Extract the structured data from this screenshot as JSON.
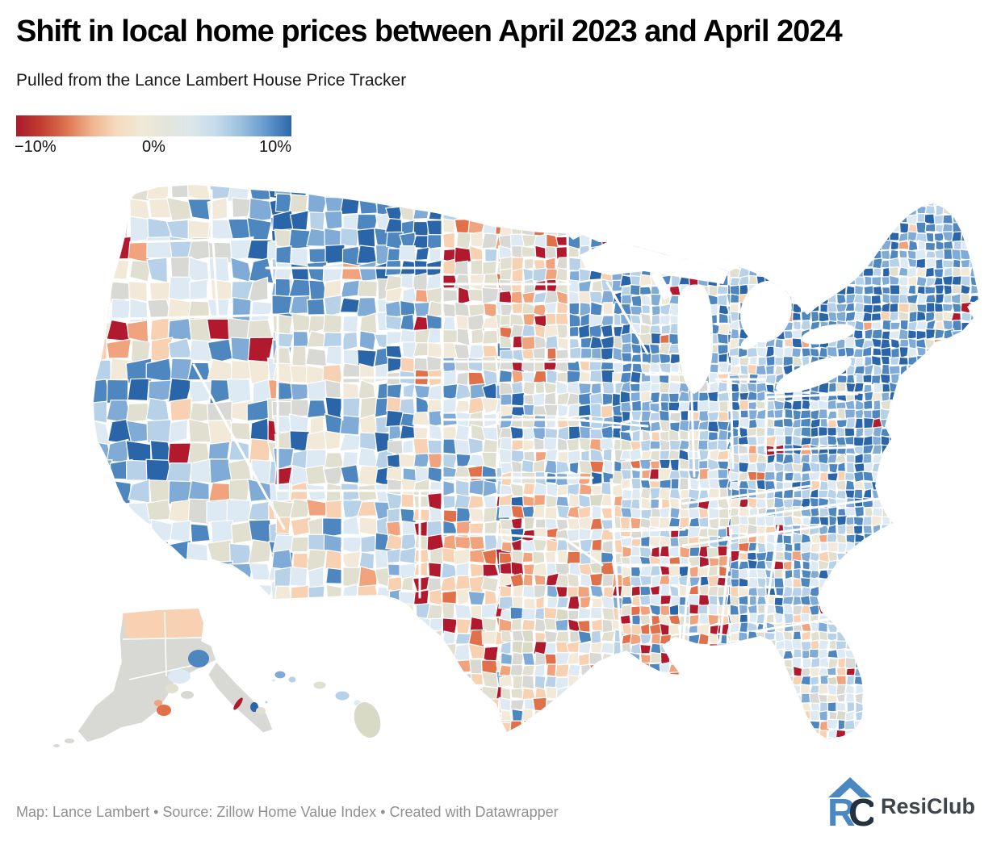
{
  "header": {
    "title": "Shift in local home prices between April 2023 and April 2024",
    "subtitle": "Pulled from the Lance Lambert House Price Tracker"
  },
  "legend": {
    "min_label": "−10%",
    "mid_label": "0%",
    "max_label": "10%",
    "gradient_stops": [
      "#a81a2c",
      "#c23d30",
      "#dd7351",
      "#f0b28c",
      "#f6d9bd",
      "#f0e9d8",
      "#e3e5da",
      "#dce7ea",
      "#c5daeb",
      "#9abfde",
      "#6398cc",
      "#2d67a9"
    ]
  },
  "map": {
    "palette": {
      "crimson": "#b11a2e",
      "orange": "#e0714b",
      "salmon": "#f0a37c",
      "peach": "#f8d0b2",
      "cream": "#f2e9d8",
      "beige": "#e1dfcf",
      "gray": "#d8d8d4",
      "sage": "#d8dac6",
      "paleBlue": "#dde9f3",
      "lightBlue": "#b7d2e8",
      "midBlue": "#7fabd6",
      "blue": "#4e86c0",
      "darkBlue": "#2b65a9"
    },
    "water_color": "#ffffff",
    "insets": [
      "Alaska",
      "Hawaii"
    ]
  },
  "chart_data": {
    "type": "choropleth",
    "title": "Shift in local home prices between April 2023 and April 2024",
    "subtitle": "Pulled from the Lance Lambert House Price Tracker",
    "geography": "United States counties (Albers projection with Alaska and Hawaii insets)",
    "metric": "Year-over-year change in local home prices, April 2023 to April 2024",
    "unit": "%",
    "scale": {
      "type": "diverging",
      "domain": [
        -10,
        0,
        10
      ],
      "tick_labels": [
        "−10%",
        "0%",
        "10%"
      ],
      "negative_color": "#a81a2c",
      "neutral_color": "#f0e9d8",
      "positive_color": "#2d67a9"
    },
    "regional_patterns": [
      {
        "region": "Northeast (New England, NY, NJ, eastern PA)",
        "trend": "strong gains, deep blue (~+5% to +10%)"
      },
      {
        "region": "Upper Midwest (WI, MI, IL, IN, OH)",
        "trend": "broadly positive, medium blue"
      },
      {
        "region": "Montana / Idaho / northern Rockies",
        "trend": "strong gains, deep blue"
      },
      {
        "region": "North Dakota / western Minnesota",
        "trend": "clusters of steep declines, crimson (~−10%)"
      },
      {
        "region": "Texas panhandle and west Texas",
        "trend": "clusters of steep declines, crimson"
      },
      {
        "region": "Louisiana / Mississippi delta",
        "trend": "declines, orange to crimson"
      },
      {
        "region": "Gulf Coast Texas and Florida panhandle",
        "trend": "flat to mildly negative, beige and gray"
      },
      {
        "region": "Southeast (Carolinas, Georgia, Alabama uplands)",
        "trend": "gains, medium blue"
      },
      {
        "region": "California coast",
        "trend": "gains, blue; isolated far-north coastal declines"
      },
      {
        "region": "Nevada / Utah basins",
        "trend": "flat, beige and gray with isolated crimson counties"
      },
      {
        "region": "Alaska",
        "trend": "mostly flat gray; mild declines on North Slope"
      },
      {
        "region": "Hawaii",
        "trend": "mixed mild gains and flat"
      }
    ]
  },
  "footer": {
    "credit": "Map: Lance Lambert • Source: Zillow Home Value Index • Created with Datawrapper",
    "brand": "ResiClub",
    "logo_r": "R",
    "logo_c": "C"
  }
}
